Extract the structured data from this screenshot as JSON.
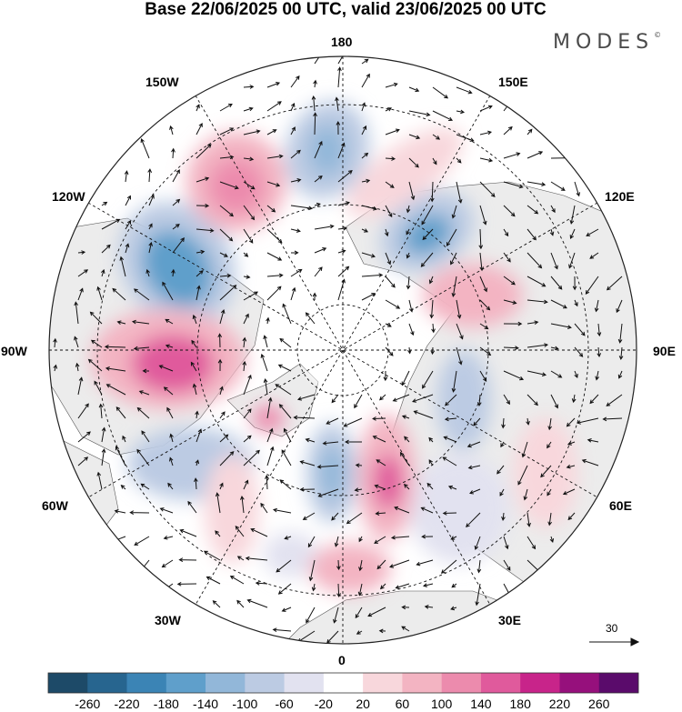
{
  "title": "Base 22/06/2025 00 UTC, valid 23/06/2025 00 UTC",
  "brand": {
    "text": "MODES",
    "mark": "©"
  },
  "map": {
    "projection": "north-polar-stereographic",
    "longitude_labels": {
      "top": "180",
      "bottom": "0",
      "left": "90W",
      "right": "90E",
      "upper_left_a": "150W",
      "upper_left_b": "120W",
      "upper_right_a": "150E",
      "upper_right_b": "120E",
      "lower_left_a": "60W",
      "lower_left_b": "30W",
      "lower_right_a": "60E",
      "lower_right_b": "30E"
    },
    "land_color": "#ececec",
    "ocean_color": "#ffffff"
  },
  "reference_vector": {
    "value": "30"
  },
  "colorbar": {
    "colors": [
      "#1d4a68",
      "#27658f",
      "#3b84b5",
      "#5f9fcb",
      "#92b7d9",
      "#bccbe3",
      "#e2e2f0",
      "#ffffff",
      "#f8d7dc",
      "#f3b4c2",
      "#ec8bad",
      "#e05a9c",
      "#c8248a",
      "#96107c",
      "#5a0b6b"
    ],
    "labels": [
      "-260",
      "-220",
      "-180",
      "-140",
      "-100",
      "-60",
      "-20",
      "20",
      "60",
      "100",
      "140",
      "180",
      "220",
      "260"
    ]
  }
}
